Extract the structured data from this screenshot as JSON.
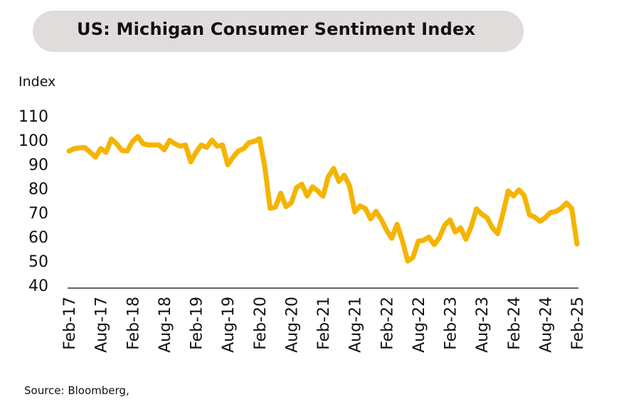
{
  "chart_data": {
    "type": "line",
    "title": "US: Michigan Consumer Sentiment Index",
    "ylabel": "Index",
    "source": "Source: Bloomberg,",
    "ylim": [
      40,
      110
    ],
    "yticks": [
      40,
      50,
      60,
      70,
      80,
      90,
      100,
      110
    ],
    "xtick_labels": [
      "Feb-17",
      "Aug-17",
      "Feb-18",
      "Aug-18",
      "Feb-19",
      "Aug-19",
      "Feb-20",
      "Aug-20",
      "Feb-21",
      "Aug-21",
      "Feb-22",
      "Aug-22",
      "Feb-23",
      "Aug-23",
      "Feb-24",
      "Aug-24",
      "Feb-25"
    ],
    "grid": false,
    "line_color": "#f5b400",
    "series": [
      {
        "values": [
          95.5,
          96.5,
          96.8,
          96.9,
          95.0,
          93.0,
          96.5,
          95.0,
          100.5,
          98.5,
          95.7,
          95.5,
          99.5,
          101.5,
          98.5,
          98.0,
          98.0,
          98.0,
          96.0,
          99.9,
          98.5,
          97.5,
          98.0,
          91.0,
          95.0,
          98.0,
          97.0,
          100.0,
          97.5,
          98.0,
          89.8,
          93.0,
          95.5,
          96.5,
          99.0,
          99.5,
          100.6,
          89.0,
          71.8,
          72.3,
          78.1,
          72.5,
          74.1,
          80.4,
          81.8,
          76.9,
          80.7,
          79.0,
          76.8,
          84.9,
          88.3,
          82.9,
          85.5,
          81.2,
          70.3,
          72.8,
          71.7,
          67.4,
          70.6,
          67.2,
          62.8,
          59.4,
          65.2,
          58.4,
          50.0,
          51.5,
          58.2,
          58.6,
          59.9,
          56.8,
          59.7,
          64.9,
          67.0,
          62.0,
          63.7,
          59.0,
          64.2,
          71.6,
          69.4,
          67.9,
          63.8,
          61.3,
          69.7,
          79.0,
          76.9,
          79.4,
          77.2,
          69.1,
          68.2,
          66.4,
          67.9,
          70.1,
          70.5,
          71.8,
          74.0,
          71.7,
          57.0
        ]
      }
    ]
  }
}
